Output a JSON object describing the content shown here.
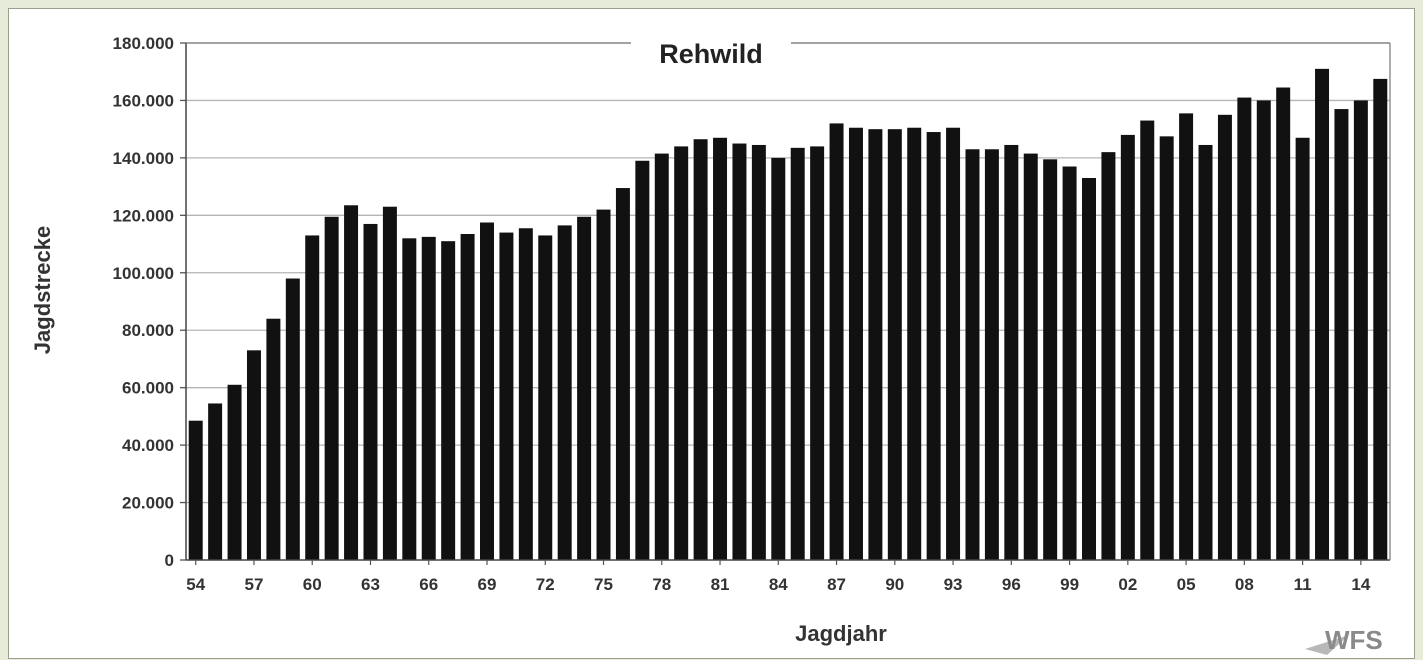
{
  "chart_data": {
    "type": "bar",
    "title": "Rehwild",
    "xlabel": "Jagdjahr",
    "ylabel": "Jagdstrecke",
    "ylim": [
      0,
      180000
    ],
    "yticks": [
      "0",
      "20.000",
      "40.000",
      "60.000",
      "80.000",
      "100.000",
      "120.000",
      "140.000",
      "160.000",
      "180.000"
    ],
    "xtick_labels": [
      "54",
      "57",
      "60",
      "63",
      "66",
      "69",
      "72",
      "75",
      "78",
      "81",
      "84",
      "87",
      "90",
      "93",
      "96",
      "99",
      "02",
      "05",
      "08",
      "11",
      "14"
    ],
    "grid": true,
    "bar_color": "#111111",
    "categories": [
      "54",
      "55",
      "56",
      "57",
      "58",
      "59",
      "60",
      "61",
      "62",
      "63",
      "64",
      "65",
      "66",
      "67",
      "68",
      "69",
      "70",
      "71",
      "72",
      "73",
      "74",
      "75",
      "76",
      "77",
      "78",
      "79",
      "80",
      "81",
      "82",
      "83",
      "84",
      "85",
      "86",
      "87",
      "88",
      "89",
      "90",
      "91",
      "92",
      "93",
      "94",
      "95",
      "96",
      "97",
      "98",
      "99",
      "00",
      "01",
      "02",
      "03",
      "04",
      "05",
      "06",
      "07",
      "08",
      "09",
      "10",
      "11",
      "12",
      "13",
      "14",
      "15"
    ],
    "values": [
      48500,
      54500,
      61000,
      73000,
      84000,
      98000,
      113000,
      119500,
      123500,
      117000,
      123000,
      112000,
      112500,
      111000,
      113500,
      117500,
      114000,
      115500,
      113000,
      116500,
      119500,
      122000,
      129500,
      139000,
      141500,
      144000,
      146500,
      147000,
      145000,
      144500,
      140000,
      143500,
      144000,
      152000,
      150500,
      150000,
      150000,
      150500,
      149000,
      150500,
      143000,
      143000,
      144500,
      141500,
      139500,
      137000,
      133000,
      142000,
      148000,
      153000,
      147500,
      155500,
      144500,
      155000,
      161000,
      160000,
      164500,
      147000,
      171000,
      157000,
      160000,
      167500
    ]
  },
  "logo": {
    "text": "WFS",
    "icon": "wfs-logo-icon"
  }
}
